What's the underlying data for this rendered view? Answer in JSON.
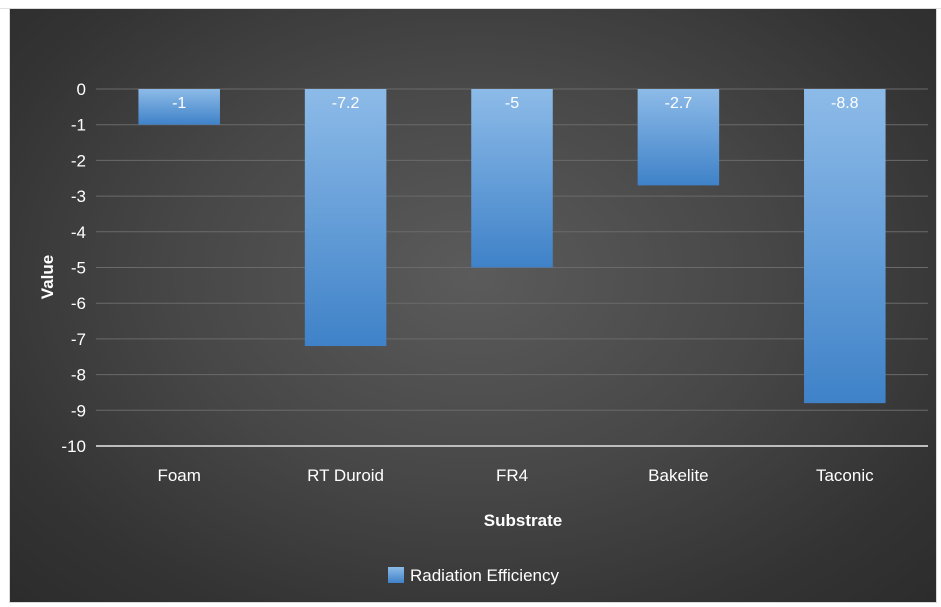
{
  "chart_data": {
    "type": "bar",
    "title": "",
    "xlabel": "Substrate",
    "ylabel": "Value",
    "categories": [
      "Foam",
      "RT Duroid",
      "FR4",
      "Bakelite",
      "Taconic"
    ],
    "series": [
      {
        "name": "Radiation Efficiency",
        "values": [
          -1,
          -7.2,
          -5,
          -2.7,
          -8.8
        ],
        "data_labels": [
          "-1",
          "-7.2",
          "-5",
          "-2.7",
          "-8.8"
        ],
        "color": "#5b9bd5"
      }
    ],
    "ylim": [
      -10,
      0
    ],
    "yticks": [
      0,
      -1,
      -2,
      -3,
      -4,
      -5,
      -6,
      -7,
      -8,
      -9,
      -10
    ],
    "ytick_labels": [
      "0",
      "-1",
      "-2",
      "-3",
      "-4",
      "-5",
      "-6",
      "-7",
      "-8",
      "-9",
      "-10"
    ],
    "grid": true,
    "legend_position": "bottom",
    "background_color": "#404040",
    "text_color": "#ffffff"
  }
}
